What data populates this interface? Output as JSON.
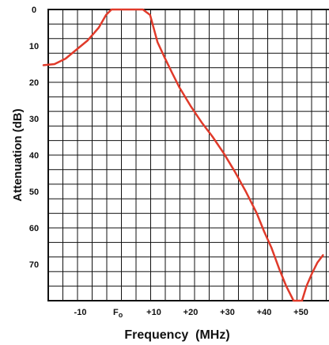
{
  "chart_data": {
    "type": "line",
    "title": "",
    "xlabel": "Frequency  (MHz)",
    "ylabel": "Attenuation (dB)",
    "y_inverted": true,
    "ylim": [
      0,
      80
    ],
    "xlim": [
      -20,
      56
    ],
    "x_ticks": [
      {
        "label": "-10",
        "value": -10
      },
      {
        "label": "+10",
        "value": 10
      },
      {
        "label": "+20",
        "value": 20
      },
      {
        "label": "+30",
        "value": 30
      },
      {
        "label": "+40",
        "value": 40
      },
      {
        "label": "+50",
        "value": 50
      }
    ],
    "x_center_label": {
      "base": "F",
      "sub": "o",
      "value": 0
    },
    "y_ticks": [
      0,
      10,
      20,
      30,
      40,
      50,
      60,
      70
    ],
    "grid": true,
    "series": [
      {
        "color": "#e03a2a",
        "x": [
          -20,
          -17,
          -14,
          -11,
          -8,
          -5,
          -3,
          -1.5,
          0,
          1.5,
          3,
          5,
          7,
          9,
          11,
          13,
          15,
          17,
          20,
          23,
          26,
          29,
          32,
          35,
          38,
          40,
          42,
          44,
          46,
          48,
          49.8
        ],
        "y": [
          15.3,
          15,
          13.5,
          11,
          8.5,
          5,
          1.5,
          0,
          0,
          0,
          0,
          0,
          0,
          1.5,
          9,
          13.3,
          17.5,
          21.5,
          26.5,
          31,
          35,
          39.5,
          44.5,
          50,
          56,
          61,
          65.5,
          71,
          76,
          80,
          80
        ]
      },
      {
        "color": "#e03a2a",
        "x": [
          50.3,
          51.5,
          53,
          54.5,
          56
        ],
        "y": [
          80,
          76,
          72.5,
          69.5,
          67.5
        ]
      }
    ]
  }
}
